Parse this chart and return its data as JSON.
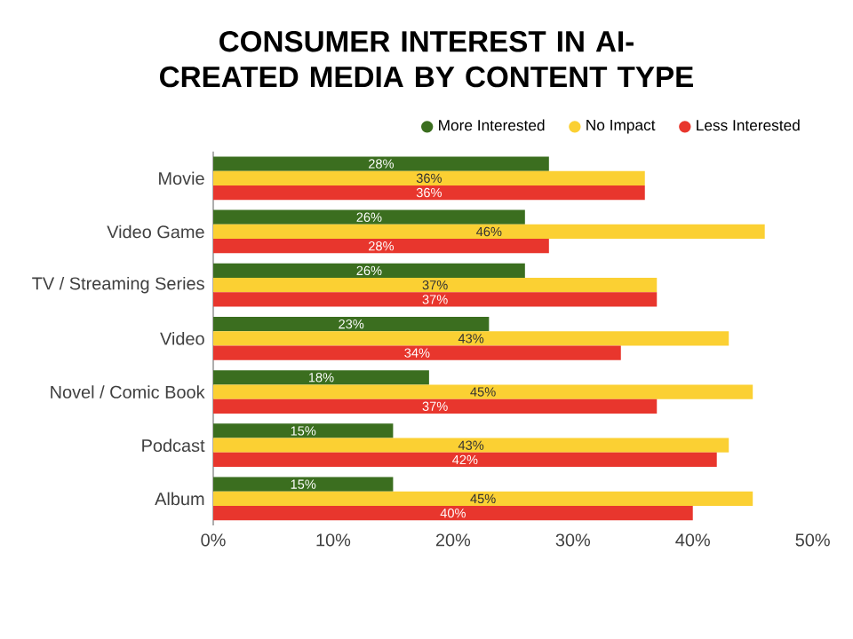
{
  "chart_data": {
    "type": "bar",
    "orientation": "horizontal",
    "title": "CONSUMER INTEREST IN AI-CREATED MEDIA BY CONTENT TYPE",
    "categories": [
      "Movie",
      "Video Game",
      "TV / Streaming Series",
      "Video",
      "Novel / Comic Book",
      "Podcast",
      "Album"
    ],
    "series": [
      {
        "name": "More Interested",
        "color": "#3b6e1f",
        "values": [
          28,
          26,
          26,
          23,
          18,
          15,
          15
        ],
        "value_labels": [
          "28%",
          "26%",
          "26%",
          "23%",
          "18%",
          "15%",
          "15%"
        ]
      },
      {
        "name": "No Impact",
        "color": "#fbd033",
        "values": [
          36,
          46,
          37,
          43,
          45,
          43,
          45
        ],
        "value_labels": [
          "36%",
          "46%",
          "37%",
          "43%",
          "45%",
          "43%",
          "45%"
        ]
      },
      {
        "name": "Less Interested",
        "color": "#e8362d",
        "values": [
          36,
          28,
          37,
          34,
          37,
          42,
          40
        ],
        "value_labels": [
          "36%",
          "28%",
          "37%",
          "34%",
          "37%",
          "42%",
          "40%"
        ]
      }
    ],
    "xlim": [
      0,
      50
    ],
    "xticks": [
      {
        "value": 0,
        "label": "0%"
      },
      {
        "value": 10,
        "label": "10%"
      },
      {
        "value": 20,
        "label": "20%"
      },
      {
        "value": 30,
        "label": "30%"
      },
      {
        "value": 40,
        "label": "40%"
      },
      {
        "value": 50,
        "label": "50%"
      }
    ],
    "legend": "top right",
    "grid": false
  }
}
